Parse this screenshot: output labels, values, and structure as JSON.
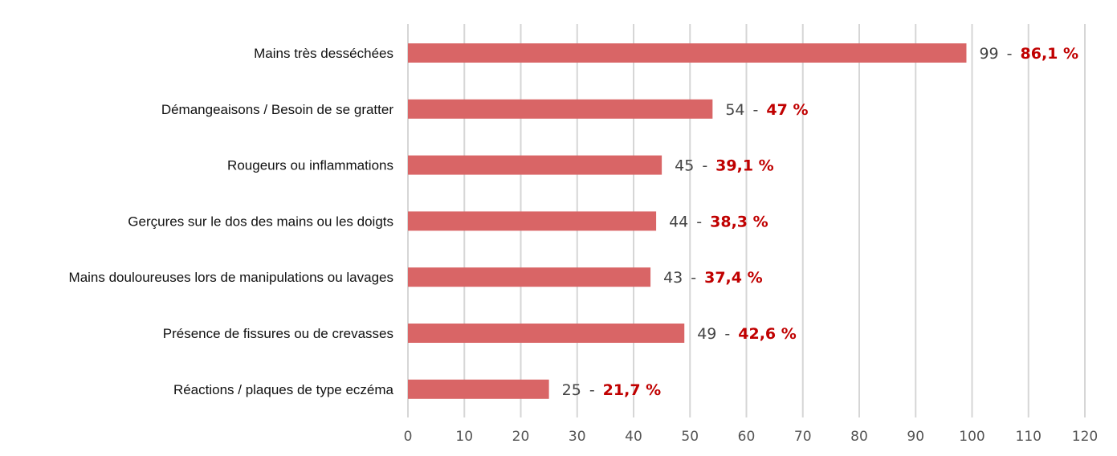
{
  "chart_data": {
    "type": "bar",
    "orientation": "horizontal",
    "categories": [
      "Mains très desséchées",
      "Démangeaisons / Besoin de se gratter",
      "Rougeurs ou inflammations",
      "Gerçures sur le dos des mains ou les doigts",
      "Mains douloureuses lors de manipulations ou lavages",
      "Présence de fissures ou de crevasses",
      "Réactions / plaques de type eczéma"
    ],
    "values": [
      99,
      54,
      45,
      44,
      43,
      49,
      25
    ],
    "value_labels": [
      "99",
      "54",
      "45",
      "44",
      "43",
      "49",
      "25"
    ],
    "percent_labels": [
      "86,1 %",
      "47 %",
      "39,1 %",
      "38,3 %",
      "37,4 %",
      "42,6 %",
      "21,7 %"
    ],
    "separator": "-",
    "xlim": [
      0,
      120
    ],
    "xticks": [
      "0",
      "10",
      "20",
      "30",
      "40",
      "50",
      "60",
      "70",
      "80",
      "90",
      "100",
      "110",
      "120"
    ],
    "grid": "vertical",
    "legend": "none",
    "bar_color": "#d96566",
    "percent_color": "#c00000"
  }
}
